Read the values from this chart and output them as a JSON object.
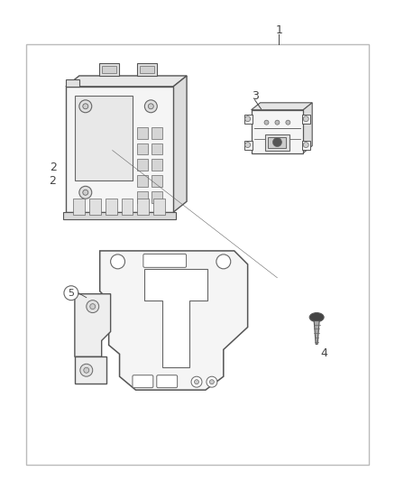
{
  "background_color": "#ffffff",
  "border_color": "#bbbbbb",
  "text_color": "#444444",
  "fig_width": 4.38,
  "fig_height": 5.33,
  "dpi": 100,
  "label_1": "1",
  "label_2": "2",
  "label_3": "3",
  "label_4": "4",
  "label_5": "5",
  "lc": "#666666",
  "ec": "#555555",
  "fc": "#f5f5f5",
  "fc2": "#eeeeee",
  "dark": "#222222"
}
